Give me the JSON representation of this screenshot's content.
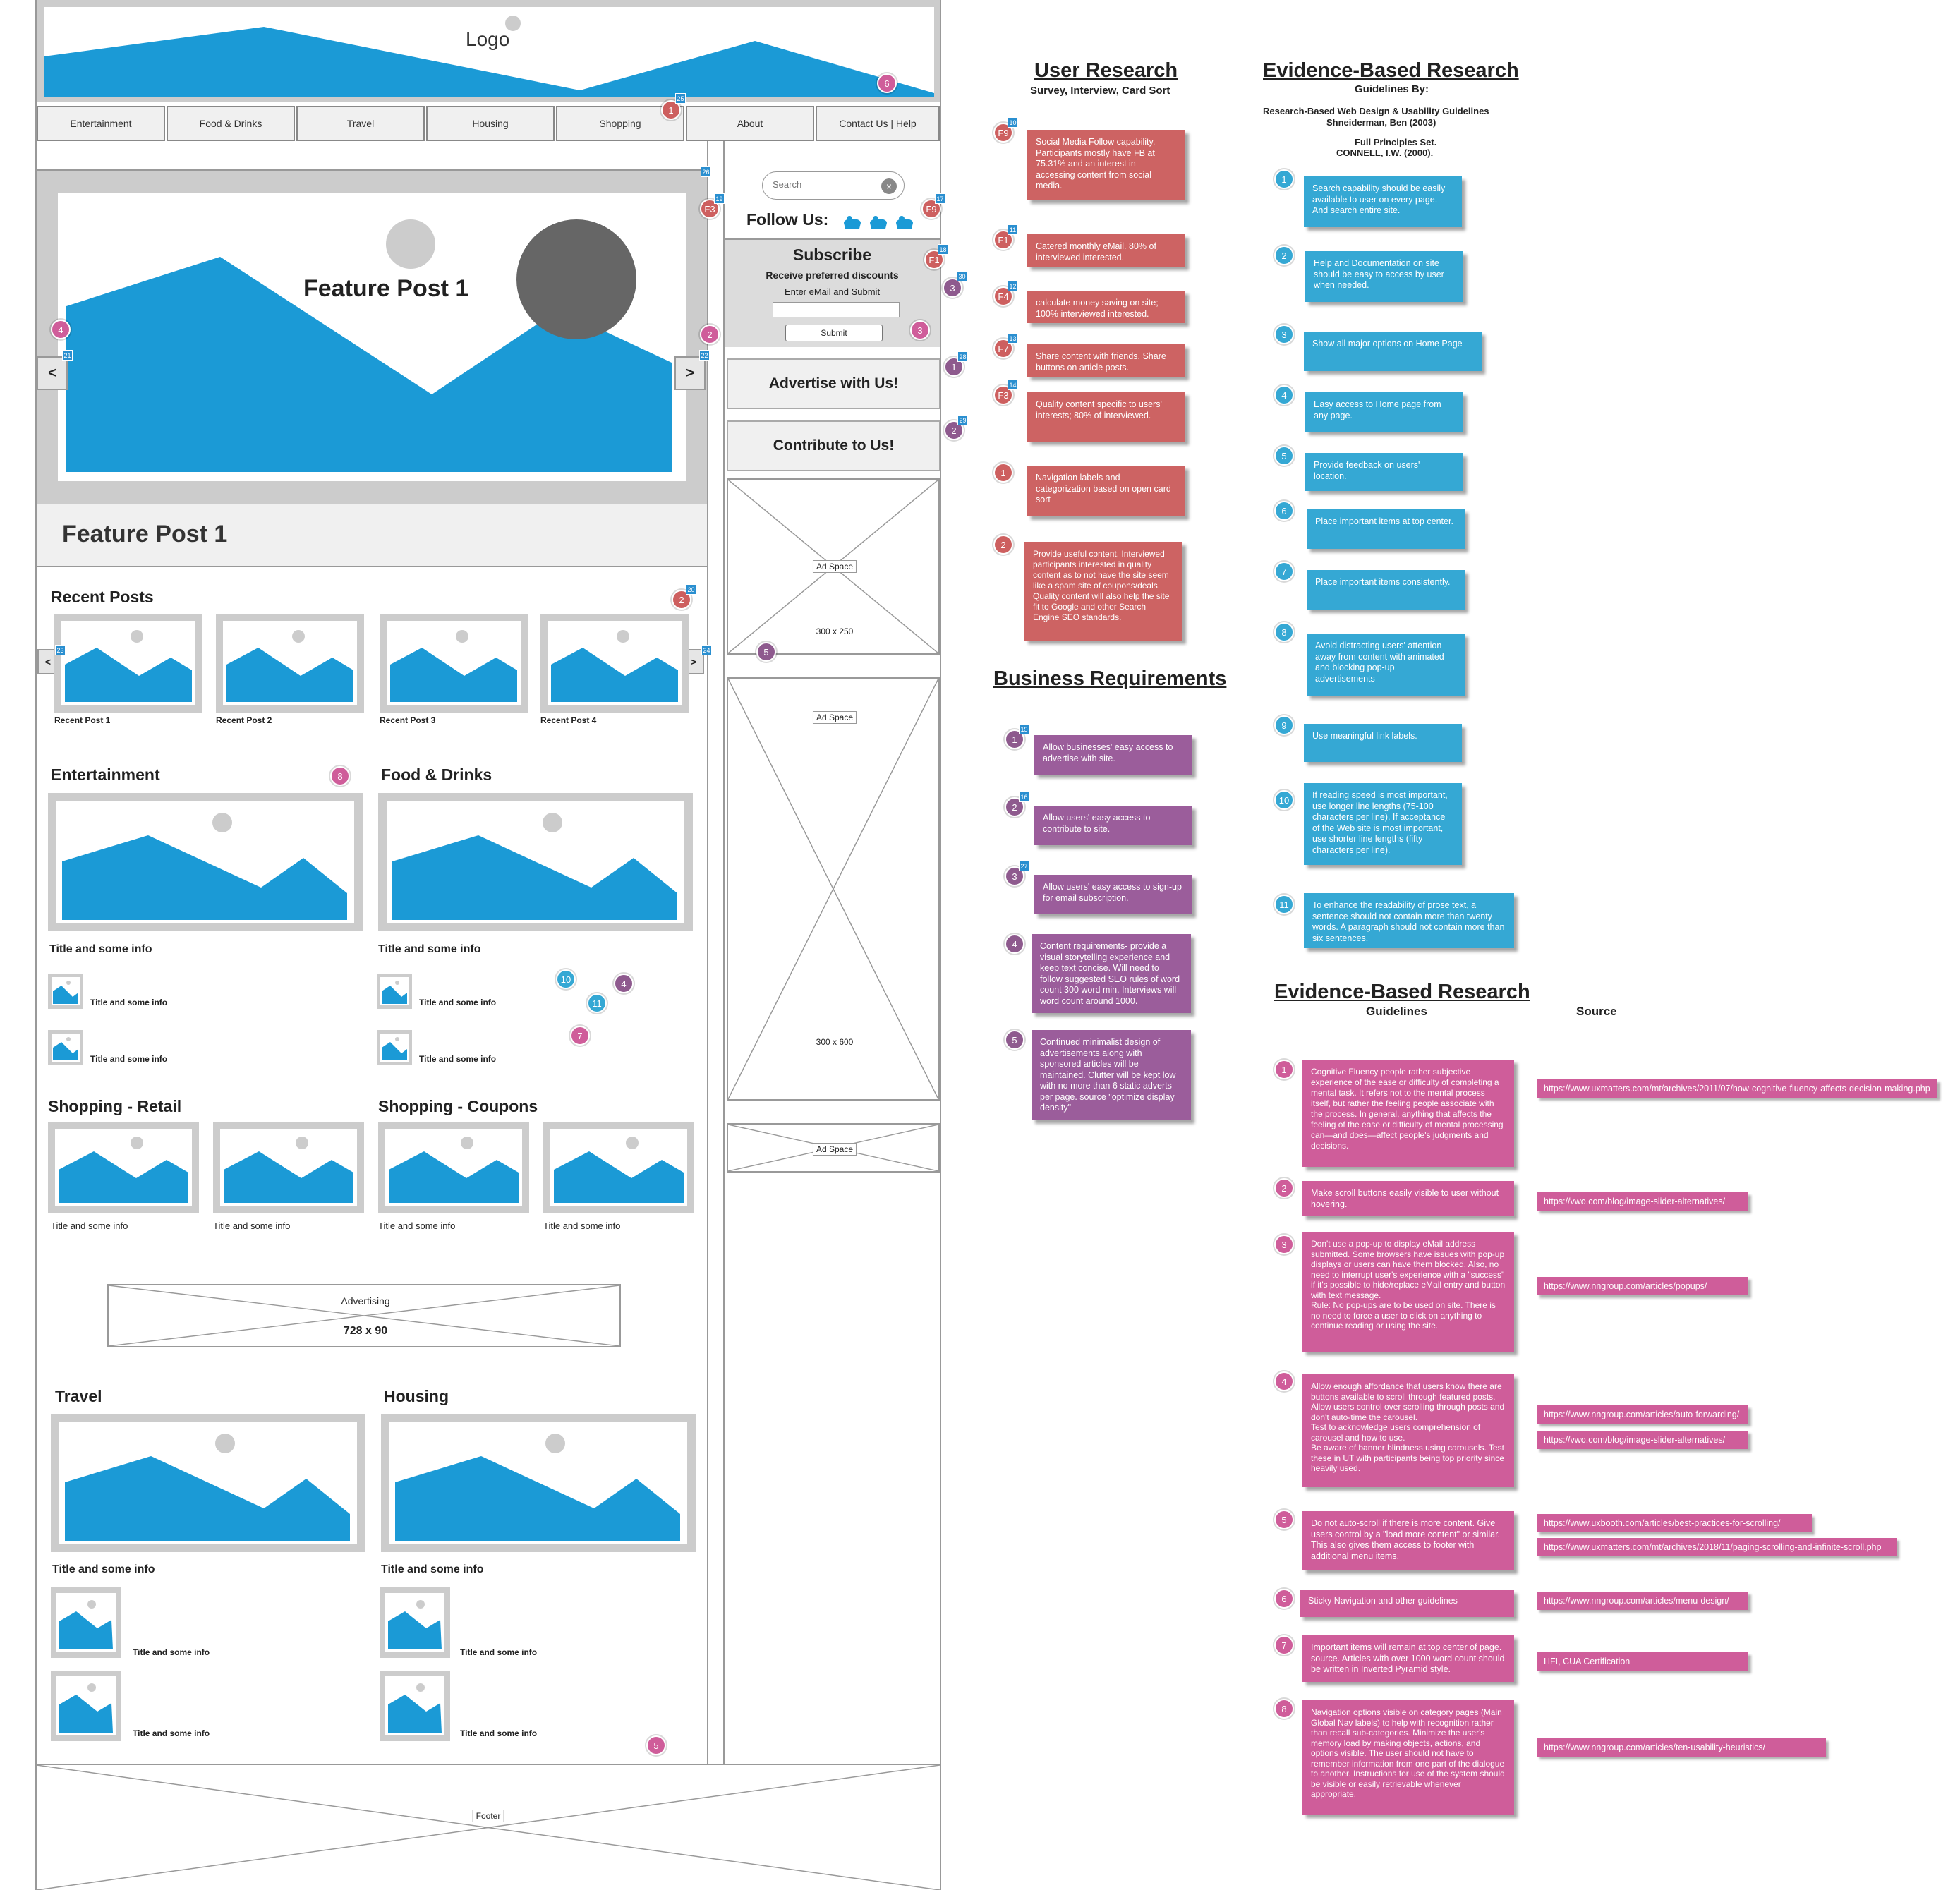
{
  "header": {
    "logo": "Logo"
  },
  "nav": [
    "Entertainment",
    "Food & Drinks",
    "Travel",
    "Housing",
    "Shopping",
    "About",
    "Contact Us | Help"
  ],
  "feature": {
    "overlay_title": "Feature Post 1",
    "caption": "Feature Post 1",
    "prev": "<",
    "next": ">"
  },
  "recent": {
    "heading": "Recent Posts",
    "prev": "<",
    "next": ">",
    "items": [
      "Recent Post 1",
      "Recent Post 2",
      "Recent Post 3",
      "Recent Post 4"
    ]
  },
  "sections": {
    "entertainment": "Entertainment",
    "food": "Food & Drinks",
    "shopping_retail": "Shopping - Retail",
    "shopping_coupons": "Shopping - Coupons",
    "travel": "Travel",
    "housing": "Housing",
    "item_text": "Title and some info"
  },
  "advert": {
    "label": "Advertising",
    "size": "728 x 90"
  },
  "footer": "Footer",
  "sidebar": {
    "search_placeholder": "Search",
    "follow": "Follow Us:",
    "subscribe_title": "Subscribe",
    "subscribe_sub": "Receive  preferred discounts",
    "subscribe_hint": "Enter eMail and Submit",
    "submit": "Submit",
    "advertise": "Advertise with Us!",
    "contribute": "Contribute to Us!",
    "ad_label": "Ad Space",
    "ad1_size": "300 x 250",
    "ad2_size": "300 x 600"
  },
  "user_research": {
    "title": "User Research",
    "subtitle": "Survey, Interview, Card Sort",
    "notes": [
      {
        "marker": "F9",
        "tag": "10",
        "text": "Social Media Follow capability. Participants mostly have FB at 75.31% and an interest in accessing content from social media."
      },
      {
        "marker": "F1",
        "tag": "11",
        "text": "Catered monthly eMail. 80% of interviewed interested."
      },
      {
        "marker": "F4",
        "tag": "12",
        "text": "calculate money saving on site; 100% interviewed interested."
      },
      {
        "marker": "F7",
        "tag": "13",
        "text": "Share content with friends. Share buttons on article posts."
      },
      {
        "marker": "F3",
        "tag": "14",
        "text": "Quality content specific to users' interests; 80% of interviewed."
      },
      {
        "marker": "1",
        "tag": "",
        "text": "Navigation labels and categorization based on open card sort"
      },
      {
        "marker": "2",
        "tag": "",
        "text": "Provide useful content. Interviewed participants interested in quality content as to not have the site seem like a spam site of coupons/deals. Quality content will also help the site fit to Google and other Search Engine SEO standards."
      }
    ]
  },
  "business": {
    "title": "Business Requirements",
    "notes": [
      {
        "marker": "1",
        "tag": "15",
        "text": "Allow businesses' easy access to advertise with site."
      },
      {
        "marker": "2",
        "tag": "16",
        "text": "Allow users' easy access to contribute to site."
      },
      {
        "marker": "3",
        "tag": "27",
        "text": "Allow users' easy access to sign-up for email subscription."
      },
      {
        "marker": "4",
        "tag": "",
        "text": "Content requirements- provide a visual storytelling experience and keep text concise. Will need to follow suggested SEO rules of word count 300 word min. Interviews will word count around 1000."
      },
      {
        "marker": "5",
        "tag": "",
        "text": "Continued minimalist design of advertisements along with sponsored articles will be maintained. Clutter will be kept low with no more than 6 static adverts per page. source \"optimize display density\""
      }
    ]
  },
  "evidence1": {
    "title": "Evidence-Based Research",
    "subtitle1": "Guidelines By:",
    "subtitle2": "Research-Based Web Design & Usability Guidelines",
    "subtitle3": "Shneiderman, Ben (2003)",
    "subtitle4": "Full Principles Set.",
    "subtitle5": "CONNELL, I.W. (2000).",
    "notes": [
      {
        "marker": "1",
        "text": "Search capability should be easily available to user on every page. And search entire site."
      },
      {
        "marker": "2",
        "text": "Help and Documentation on site should be easy to access by user when needed."
      },
      {
        "marker": "3",
        "text": "Show all major options on Home Page"
      },
      {
        "marker": "4",
        "text": "Easy access to Home page from any page."
      },
      {
        "marker": "5",
        "text": " Provide feedback on users' location."
      },
      {
        "marker": "6",
        "text": "Place important items at top center."
      },
      {
        "marker": "7",
        "text": "Place important items consistently."
      },
      {
        "marker": "8",
        "text": "Avoid distracting users' attention away from content with animated and blocking pop-up advertisements"
      },
      {
        "marker": "9",
        "text": "Use meaningful link labels."
      },
      {
        "marker": "10",
        "text": " If reading speed is most important, use longer line lengths (75-100 characters per line). If acceptance of the Web site is most important, use shorter line lengths (fifty characters per line)."
      },
      {
        "marker": "11",
        "text": "To enhance the readability of prose text, a sentence should not contain more than twenty words. A paragraph should not contain more than six sentences."
      }
    ]
  },
  "evidence2": {
    "title": "Evidence-Based Research",
    "col1": "Guidelines",
    "col2": "Source",
    "notes": [
      {
        "marker": "1",
        "text": "Cognitive Fluency people rather subjective experience of the ease or difficulty of completing a mental task. It refers not to the mental process itself, but rather the feeling people associate with the process. In general, anything that affects the feeling of the ease or difficulty of mental processing can—and does—affect people's judgments and decisions.",
        "links": [
          "https://www.uxmatters.com/mt/archives/2011/07/how-cognitive-fluency-affects-decision-making.php"
        ]
      },
      {
        "marker": "2",
        "text": "Make scroll buttons easily visible to user without hovering.",
        "links": [
          "https://vwo.com/blog/image-slider-alternatives/"
        ]
      },
      {
        "marker": "3",
        "text": "Don't use a pop-up to display eMail address submitted. Some browsers have issues with pop-up displays or users can have them blocked. Also, no need to interrupt user's experience with a \"success\" if it's possible to hide/replace eMail entry and button with text message.\nRule: No pop-ups are to be used on site. There is no need to force a user to click on anything to continue reading or using the site.",
        "links": [
          "https://www.nngroup.com/articles/popups/"
        ]
      },
      {
        "marker": "4",
        "text": "Allow enough affordance that users know there are buttons available to scroll through featured posts. Allow users control over scrolling through posts and don't auto-time the carousel.\nTest to acknowledge users comprehension of carousel and how to use.\nBe aware of banner blindness using carousels. Test these in UT with participants being top priority since heavily used.",
        "links": [
          "https://www.nngroup.com/articles/auto-forwarding/",
          "https://vwo.com/blog/image-slider-alternatives/"
        ]
      },
      {
        "marker": "5",
        "text": "Do not auto-scroll if there is more content. Give users control by a \"load more content\" or similar. This also gives them access to footer with additional menu items.",
        "links": [
          "https://www.uxbooth.com/articles/best-practices-for-scrolling/",
          "https://www.uxmatters.com/mt/archives/2018/11/paging-scrolling-and-infinite-scroll.php"
        ]
      },
      {
        "marker": "6",
        "text": "Sticky Navigation and other guidelines",
        "links": [
          "https://www.nngroup.com/articles/menu-design/"
        ]
      },
      {
        "marker": "7",
        "text": "Important items will remain at top center of page. source. Articles with over 1000 word count should be written in Inverted Pyramid style.",
        "links": [
          "HFI, CUA  Certification"
        ]
      },
      {
        "marker": "8",
        "text": "Navigation options visible on category pages (Main Global Nav labels) to help with recognition rather than recall sub-categories. Minimize the user's memory load by making objects, actions, and options visible. The user should not have to remember information from one part of the dialogue to another. Instructions for use of the system should be visible or easily retrievable whenever appropriate.",
        "links": [
          "https://www.nngroup.com/articles/ten-usability-heuristics/"
        ]
      }
    ]
  },
  "wire_markers": {
    "pink": [
      "6",
      "4",
      "2",
      "3",
      "8",
      "7",
      "5"
    ],
    "red": [
      "1",
      "F3",
      "F9",
      "F1",
      "2"
    ],
    "purple": [
      "3",
      "1",
      "2",
      "5",
      "4"
    ],
    "blue": [
      "10",
      "11"
    ],
    "tags": [
      "25",
      "20",
      "19",
      "17",
      "18",
      "30",
      "21",
      "22",
      "28",
      "29",
      "26",
      "23",
      "24"
    ]
  },
  "colors": {
    "accent_blue": "#1b9ad6",
    "red_note": "#cd6363",
    "purple_note": "#9b5d9b",
    "blue_note": "#35a8d4",
    "pink_note": "#cf5d9a"
  }
}
